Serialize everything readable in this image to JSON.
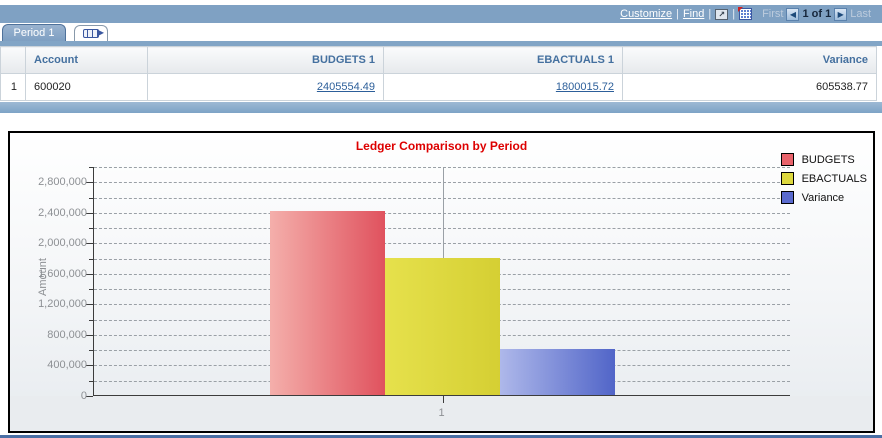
{
  "navbar": {
    "customize": "Customize",
    "find": "Find",
    "separator": "|",
    "first": "First",
    "count": "1 of 1",
    "last": "Last",
    "prev_arrow": "◀",
    "next_arrow": "▶",
    "popup_glyph": "↗"
  },
  "tabs": {
    "active_label": "Period 1"
  },
  "grid": {
    "columns": {
      "account": "Account",
      "budgets": "BUDGETS 1",
      "ebactuals": "EBACTUALS 1",
      "variance": "Variance"
    },
    "rows": [
      {
        "num": "1",
        "account": "600020",
        "budgets": "2405554.49",
        "ebactuals": "1800015.72",
        "variance": "605538.77"
      }
    ]
  },
  "chart_data": {
    "type": "bar",
    "title": "Ledger Comparison by Period",
    "title_color": "#dd0000",
    "xlabel": "",
    "ylabel": "Amount",
    "categories": [
      "1"
    ],
    "series": [
      {
        "name": "BUDGETS",
        "values": [
          2405554.49
        ],
        "color_light": "#f4afab",
        "color_dark": "#e0525e",
        "swatch": "#e9636b"
      },
      {
        "name": "EBACTUALS",
        "values": [
          1800015.72
        ],
        "color_light": "#e6e14c",
        "color_dark": "#d5cf33",
        "swatch": "#ddd83e"
      },
      {
        "name": "Variance",
        "values": [
          605538.77
        ],
        "color_light": "#aeb8ea",
        "color_dark": "#5165c8",
        "swatch": "#5a6ace"
      }
    ],
    "ylim": [
      0,
      3000000
    ],
    "ytick_major": 400000,
    "ytick_minor": 200000,
    "grid": "horizontal dash-dot, every 200000",
    "legend_position": "top-right"
  },
  "colors": {
    "navbar_blue": "#7fa1c3",
    "strip_blue": "#82a5c6",
    "header_text_blue": "#44709f",
    "link_blue": "#2d5f9a",
    "chart_title_red": "#dd0000"
  }
}
